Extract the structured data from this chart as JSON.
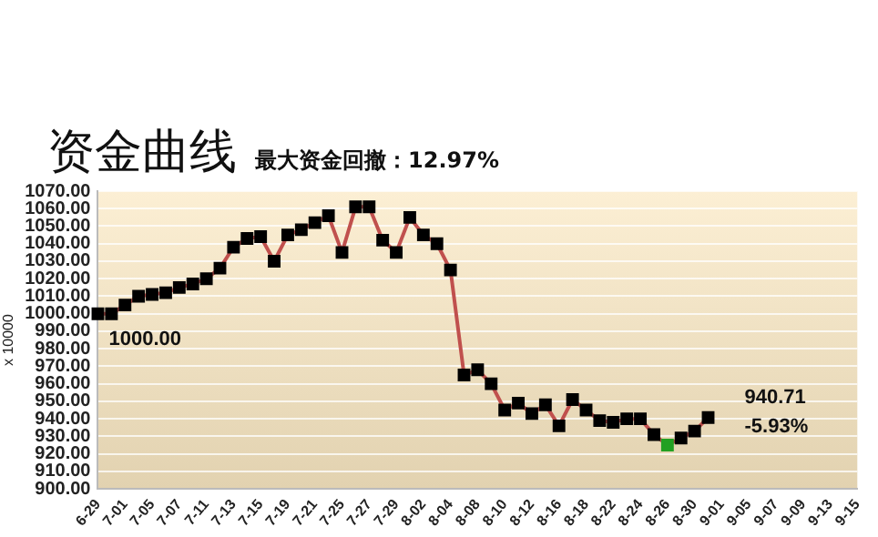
{
  "chart_data": {
    "type": "line",
    "title": "资金曲线",
    "subtitle": "最大资金回撤：12.97%",
    "ylabel": "x 10000",
    "categories": [
      "6-29",
      null,
      "7-01",
      null,
      "7-05",
      null,
      "7-07",
      null,
      "7-11",
      null,
      "7-13",
      null,
      "7-15",
      null,
      "7-19",
      null,
      "7-21",
      null,
      "7-25",
      null,
      "7-27",
      null,
      "7-29",
      null,
      "8-02",
      null,
      "8-04",
      null,
      "8-08",
      null,
      "8-10",
      null,
      "8-12",
      null,
      "8-16",
      null,
      "8-18",
      null,
      "8-22",
      null,
      "8-24",
      null,
      "8-26",
      null,
      "8-30",
      null,
      "9-01",
      null,
      "9-05",
      null,
      "9-07",
      null,
      "9-09",
      null,
      "9-13",
      null,
      "9-15"
    ],
    "series": [
      {
        "color": "#c0504d",
        "values": [
          1000,
          1000,
          1005,
          1010,
          1011,
          1012,
          1015,
          1017,
          1020,
          1026,
          1038,
          1043,
          1044,
          1030,
          1045,
          1048,
          1052,
          1056,
          1035,
          1061,
          1061,
          1042,
          1035,
          1055,
          1045,
          1040,
          1025,
          965,
          968,
          960,
          945,
          949,
          943,
          948,
          936,
          951,
          945,
          939,
          938,
          940,
          940,
          931,
          925,
          929,
          933,
          940.71,
          null,
          null,
          null,
          null,
          null,
          null,
          null,
          null,
          null,
          null,
          null
        ],
        "colors": [
          "#000000",
          "#000000",
          "#000000",
          "#000000",
          "#000000",
          "#000000",
          "#000000",
          "#000000",
          "#000000",
          "#000000",
          "#000000",
          "#000000",
          "#000000",
          "#000000",
          "#000000",
          "#000000",
          "#000000",
          "#000000",
          "#000000",
          "#000000",
          "#000000",
          "#000000",
          "#000000",
          "#000000",
          "#000000",
          "#000000",
          "#000000",
          "#000000",
          "#000000",
          "#000000",
          "#000000",
          "#000000",
          "#000000",
          "#000000",
          "#000000",
          "#000000",
          "#000000",
          "#000000",
          "#000000",
          "#000000",
          "#000000",
          "#000000",
          "#22a022",
          "#000000",
          "#000000",
          "#000000",
          null,
          null,
          null,
          null,
          null,
          null,
          null,
          null,
          null,
          null,
          null
        ]
      }
    ],
    "ylim": [
      900,
      1070
    ],
    "yticks": [
      {
        "value": 900,
        "label": "900.00"
      },
      {
        "value": 910,
        "label": "910.00"
      },
      {
        "value": 920,
        "label": "920.00"
      },
      {
        "value": 930,
        "label": "930.00"
      },
      {
        "value": 940,
        "label": "940.00"
      },
      {
        "value": 950,
        "label": "950.00"
      },
      {
        "value": 960,
        "label": "960.00"
      },
      {
        "value": 970,
        "label": "970.00"
      },
      {
        "value": 980,
        "label": "980.00"
      },
      {
        "value": 990,
        "label": "990.00"
      },
      {
        "value": 1000,
        "label": "1000.00"
      },
      {
        "value": 1010,
        "label": "1010.00"
      },
      {
        "value": 1020,
        "label": "1020.00"
      },
      {
        "value": 1030,
        "label": "1030.00"
      },
      {
        "value": 1040,
        "label": "1040.00"
      },
      {
        "value": 1050,
        "label": "1050.00"
      },
      {
        "value": 1060,
        "label": "1060.00"
      },
      {
        "value": 1070,
        "label": "1070.00"
      }
    ],
    "grid": "y",
    "marker": "square",
    "line_style": "solid",
    "legend": false,
    "annotations": [
      {
        "text": "1000.00",
        "x": "6-29",
        "y": 1000
      },
      "940.71",
      "-5.93%"
    ]
  }
}
